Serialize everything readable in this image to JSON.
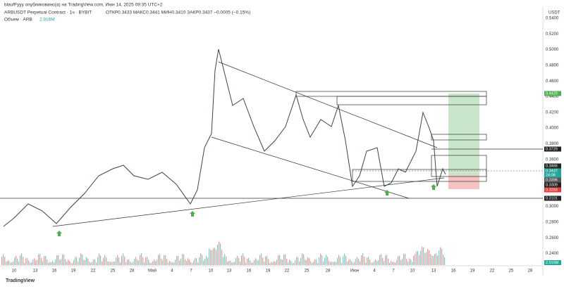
{
  "header": {
    "publisher": "blaufFyyy опубликовано(а) на TradingView.com, Июн 14, 2025 09:35 UTC+2",
    "symbol": "ARBUSDT Perpetual Contract · 1ч · BYBIT",
    "ohlc": "ОТКР0.3433 МАКС0.3441 МИН0.3410 ЗАКР0.3437 −0.0005 (−0.15%)",
    "volume_label": "Объем · ARB",
    "volume_value": "2.916M"
  },
  "price_axis": {
    "currency": "USDT",
    "labels": [
      "0.5400",
      "0.5200",
      "0.5000",
      "0.4800",
      "0.4600",
      "0.4400",
      "0.4200",
      "0.4000",
      "0.3800",
      "0.3600",
      "0.3400",
      "0.3200",
      "0.3000",
      "0.2800",
      "0.2600",
      "0.2400"
    ]
  },
  "price_tags": [
    "0.4429",
    "0.3729",
    "0.3466",
    "0.3437",
    "24:08",
    "0.3396",
    "0.3309",
    "0.3283",
    "0.3101"
  ],
  "volume_tag": "2.916M",
  "date_axis": [
    "10",
    "13",
    "16",
    "19",
    "22",
    "25",
    "28",
    "Май",
    "4",
    "7",
    "10",
    "13",
    "16",
    "19",
    "22",
    "25",
    "28",
    "Июн",
    "4",
    "7",
    "10",
    "13",
    "16",
    "19",
    "22",
    "25",
    "28"
  ],
  "footer": {
    "brand": "TradingView"
  }
}
